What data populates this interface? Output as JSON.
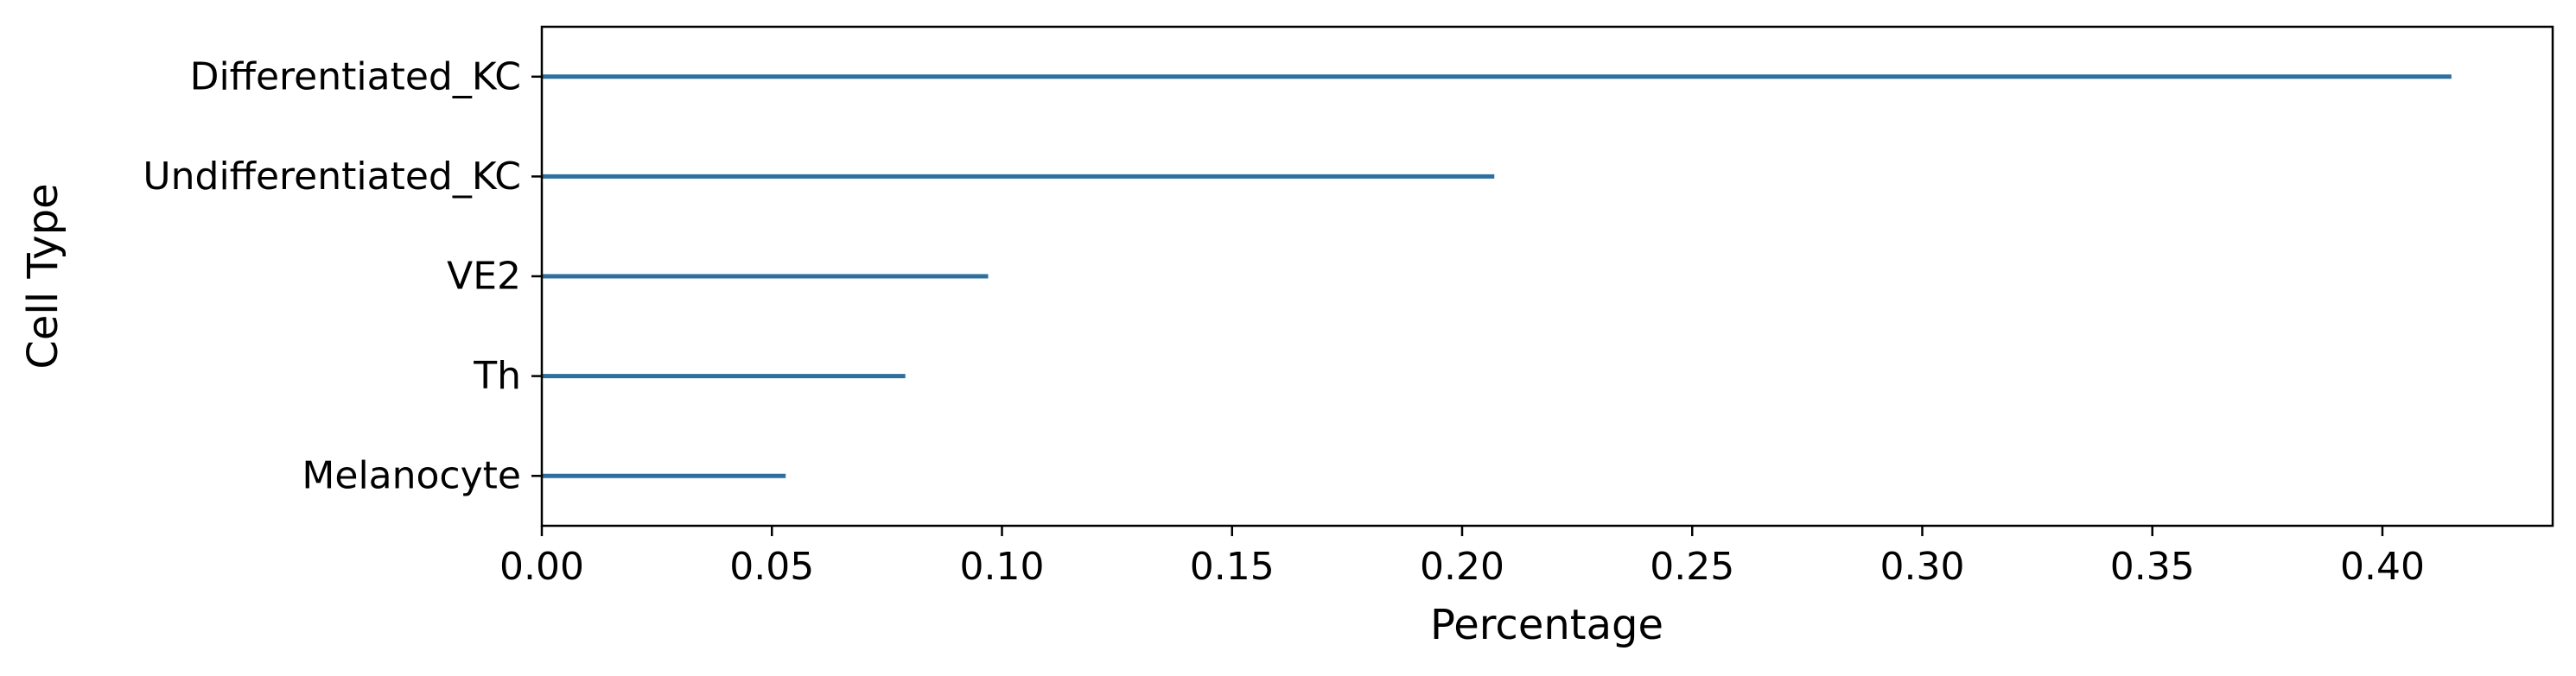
{
  "chart_data": {
    "type": "bar",
    "orientation": "horizontal",
    "categories": [
      "Differentiated_KC",
      "Undifferentiated_KC",
      "VE2",
      "Th",
      "Melanocyte"
    ],
    "values": [
      0.415,
      0.207,
      0.097,
      0.079,
      0.053
    ],
    "xlabel": "Percentage",
    "ylabel": "Cell Type",
    "xlim": [
      0.0,
      0.437
    ],
    "xticks": [
      "0.00",
      "0.05",
      "0.10",
      "0.15",
      "0.20",
      "0.25",
      "0.30",
      "0.35",
      "0.40"
    ],
    "grid": false,
    "bar_color": "#2e6f9e"
  }
}
